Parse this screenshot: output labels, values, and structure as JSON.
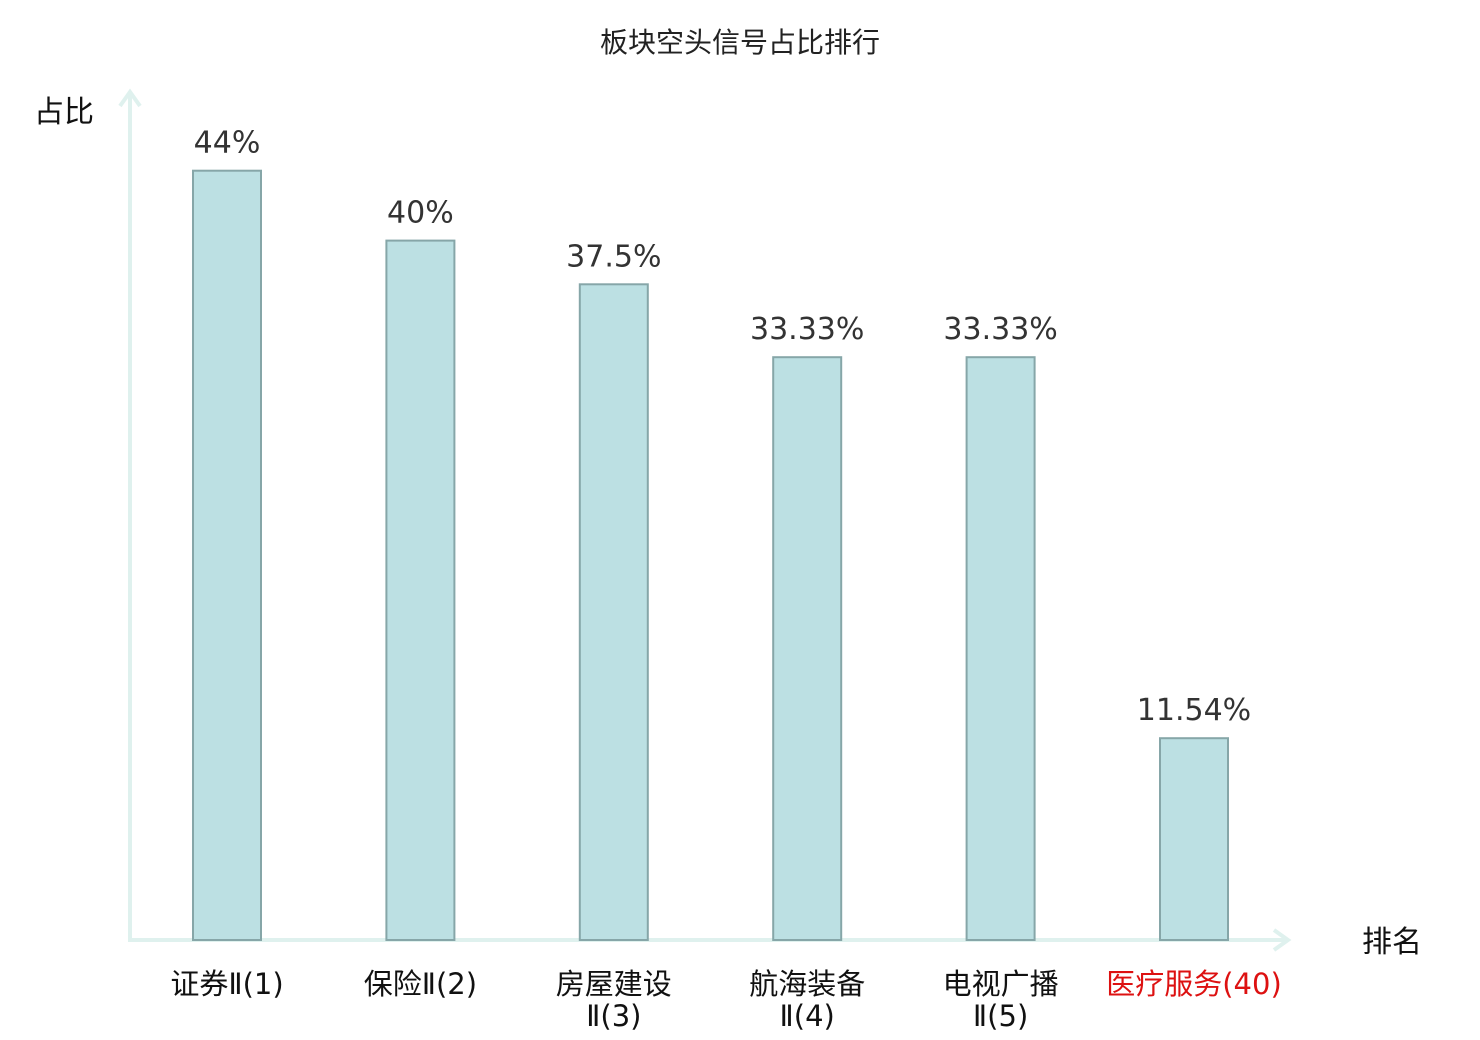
{
  "chart_data": {
    "type": "bar",
    "title": "板块空头信号占比排行",
    "xlabel": "排名",
    "ylabel": "占比",
    "ylim": [
      0,
      48.5
    ],
    "grid": false,
    "legend": "none",
    "categories": [
      [
        "证券Ⅱ(1)"
      ],
      [
        "保险Ⅱ(2)"
      ],
      [
        "房屋建设",
        "Ⅱ(3)"
      ],
      [
        "航海装备",
        "Ⅱ(4)"
      ],
      [
        "电视广播",
        "Ⅱ(5)"
      ],
      [
        "医疗服务(40)"
      ]
    ],
    "values": [
      44,
      40,
      37.5,
      33.33,
      33.33,
      11.54
    ],
    "value_labels": [
      "44%",
      "40%",
      "37.5%",
      "33.33%",
      "33.33%",
      "11.54%"
    ],
    "highlight_category_index": 5
  },
  "colors": {
    "bar_fill": "#bce0e3",
    "bar_stroke": "#86a6a8",
    "axis": "#dff1ee",
    "highlight_label": "#dd1111"
  }
}
